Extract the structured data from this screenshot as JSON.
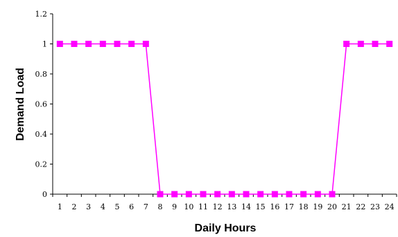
{
  "chart_data": {
    "type": "line",
    "title": "",
    "xlabel": "Daily Hours",
    "ylabel": "Demand Load",
    "categories": [
      "1",
      "2",
      "3",
      "4",
      "5",
      "6",
      "7",
      "8",
      "9",
      "10",
      "11",
      "12",
      "13",
      "14",
      "15",
      "16",
      "17",
      "18",
      "19",
      "20",
      "21",
      "22",
      "23",
      "24"
    ],
    "series": [
      {
        "values": [
          1,
          1,
          1,
          1,
          1,
          1,
          1,
          0,
          0,
          0,
          0,
          0,
          0,
          0,
          0,
          0,
          0,
          0,
          0,
          0,
          1,
          1,
          1,
          1
        ],
        "color": "#FF00FF",
        "marker": "square"
      }
    ],
    "yticks": [
      "0",
      "0.2",
      "0.4",
      "0.6",
      "0.8",
      "1",
      "1.2"
    ],
    "ylim": [
      0,
      1.2
    ],
    "grid": false,
    "legend": "none"
  }
}
